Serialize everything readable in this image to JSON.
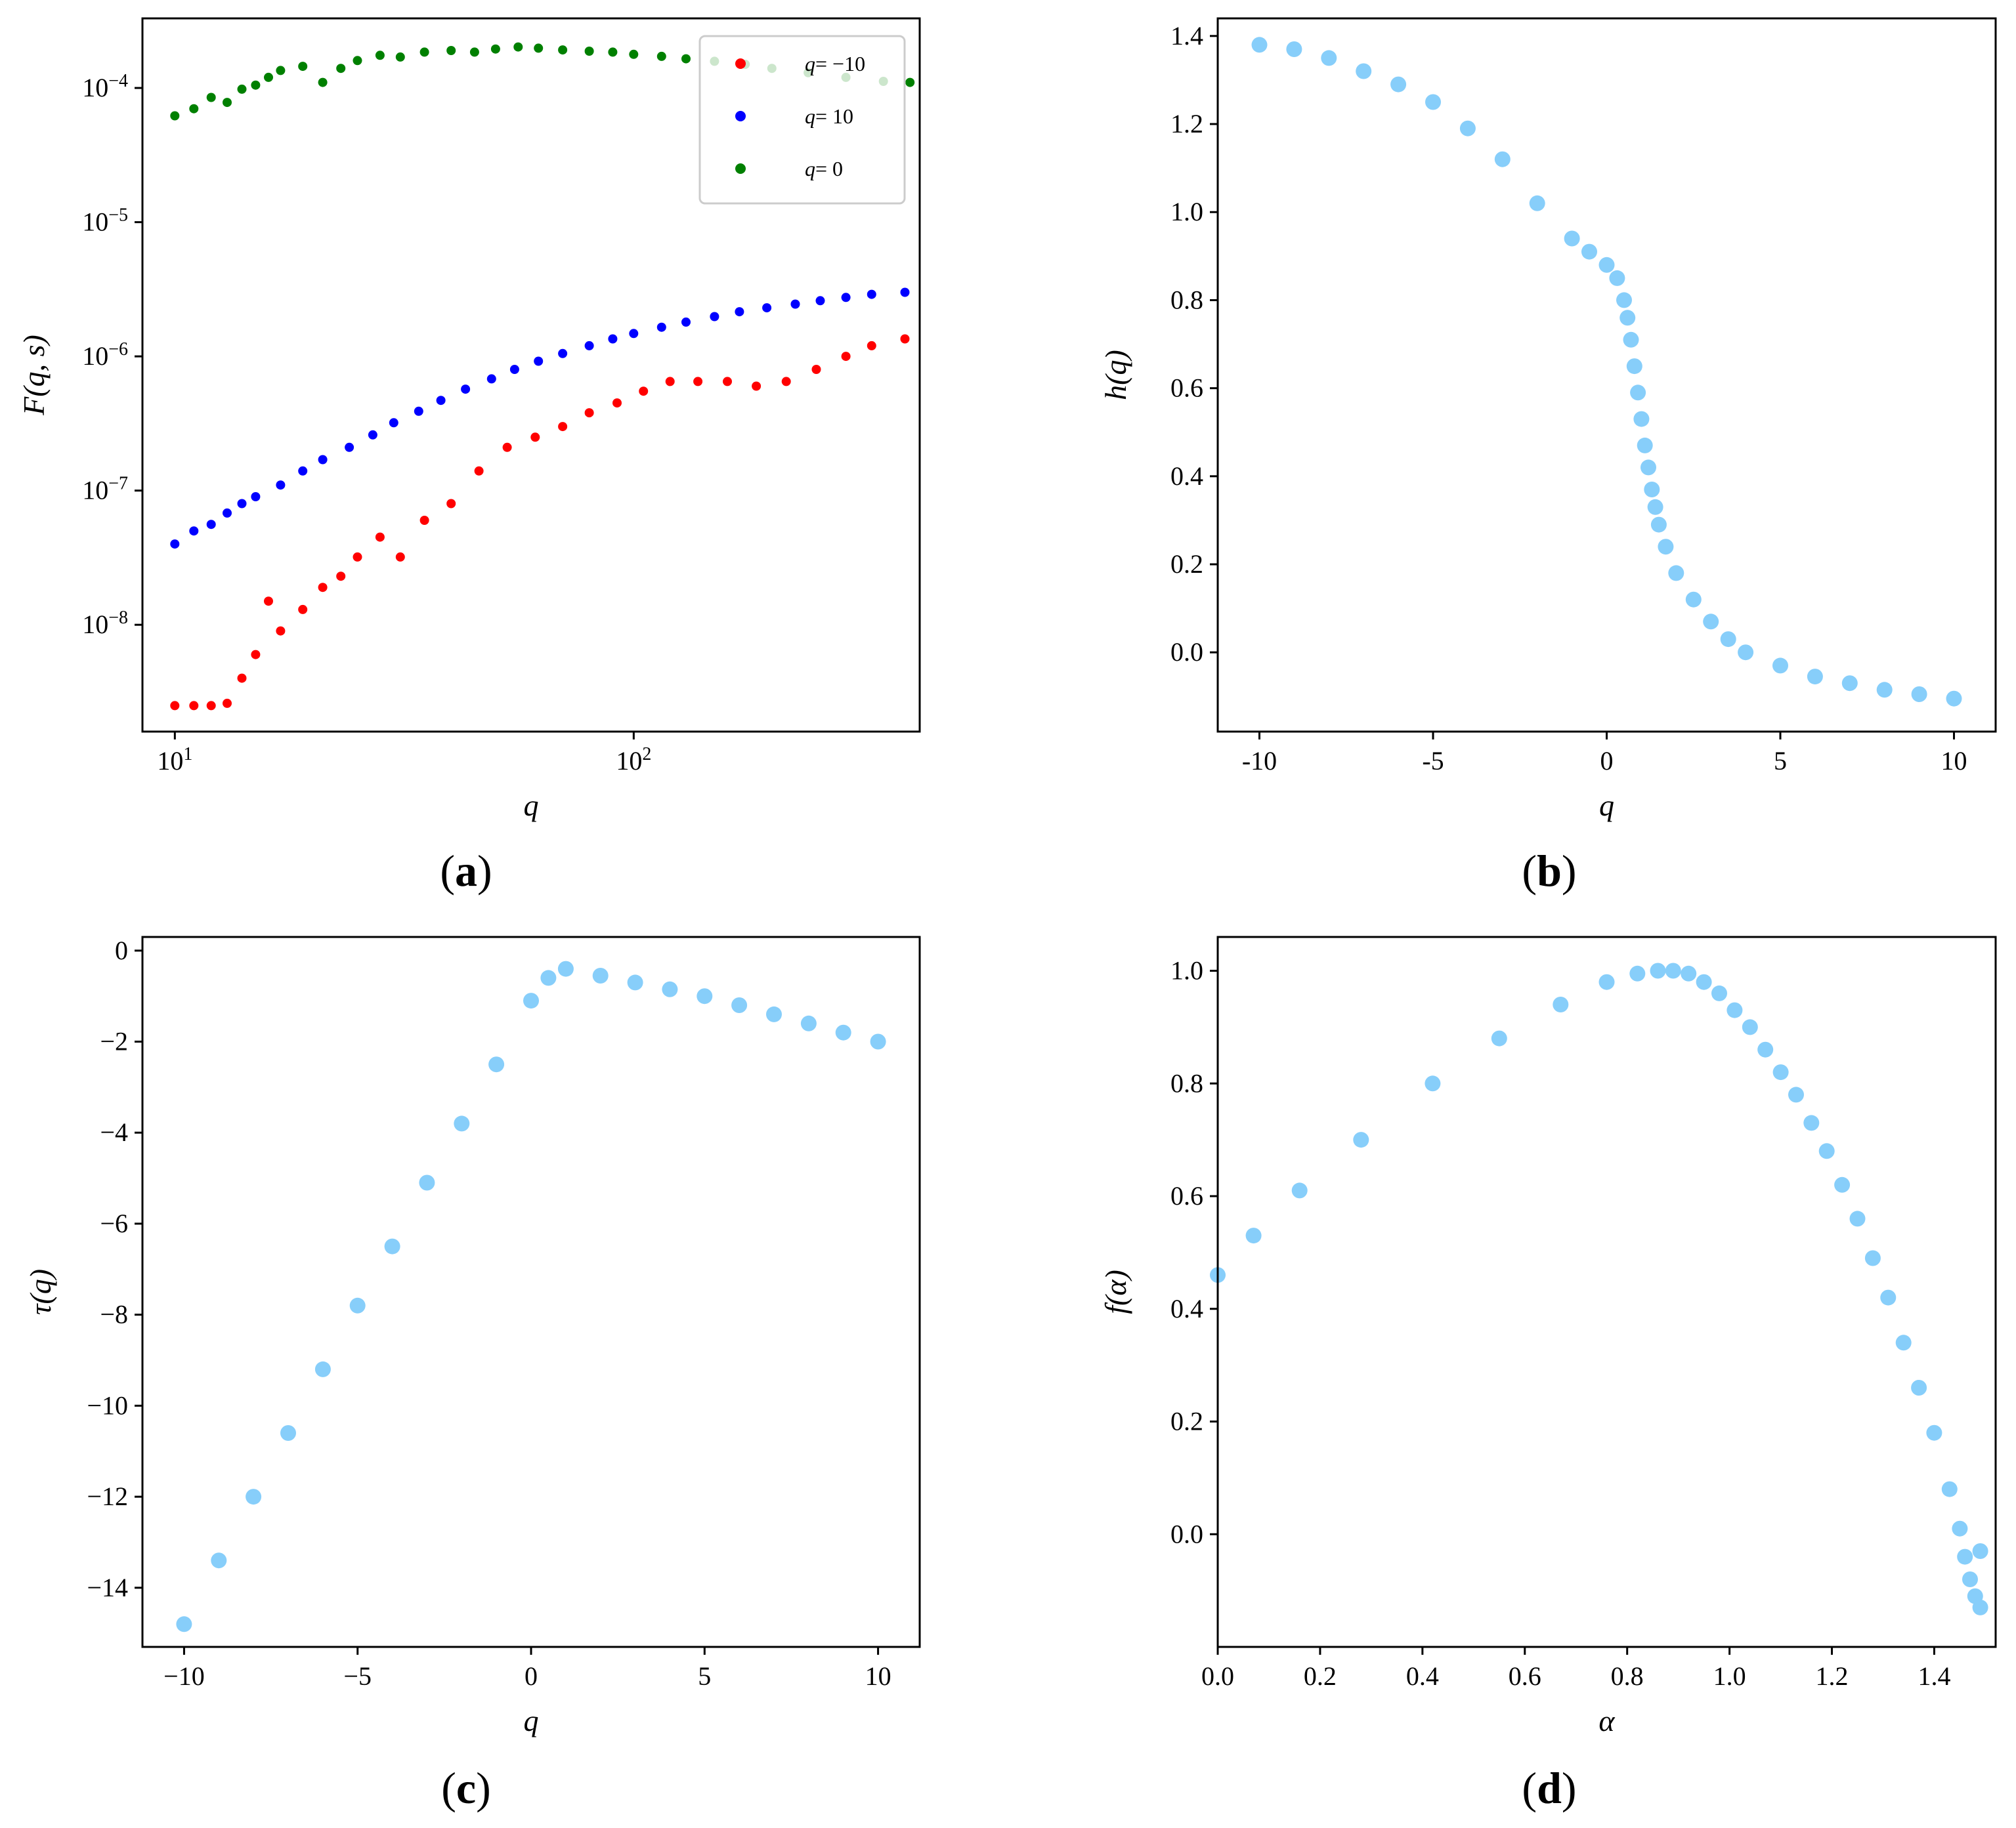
{
  "colors": {
    "red": "#ff0000",
    "blue": "#0000ff",
    "green": "#008000",
    "lightblue": "#87cefa"
  },
  "chart_data": [
    {
      "type": "scatter",
      "panel_label": "a",
      "xlabel": "q",
      "ylabel": "F(q, s)",
      "xscale": "log",
      "yscale": "log",
      "xlim": [
        8.5,
        420
      ],
      "ylim": [
        1.6e-09,
        0.00033
      ],
      "xticks": [
        {
          "value": 10,
          "base": "10",
          "exp": "1"
        },
        {
          "value": 100,
          "base": "10",
          "exp": "2"
        }
      ],
      "yticks": [
        {
          "value": 1e-08,
          "base": "10",
          "exp": "−8"
        },
        {
          "value": 1e-07,
          "base": "10",
          "exp": "−7"
        },
        {
          "value": 1e-06,
          "base": "10",
          "exp": "−6"
        },
        {
          "value": 1e-05,
          "base": "10",
          "exp": "−5"
        },
        {
          "value": 0.0001,
          "base": "10",
          "exp": "−4"
        }
      ],
      "legend_position": "top-right",
      "series": [
        {
          "name": "q=−10",
          "legend_prefix": "q",
          "legend_suffix": "= −10",
          "color": "#ff0000",
          "x": [
            10,
            11,
            12,
            13,
            14,
            15,
            16,
            17,
            19,
            21,
            23,
            25,
            28,
            31,
            35,
            40,
            46,
            53,
            61,
            70,
            80,
            92,
            105,
            120,
            138,
            160,
            185,
            215,
            250,
            290,
            330,
            390
          ],
          "y": [
            2.5e-09,
            2.5e-09,
            2.5e-09,
            2.6e-09,
            4e-09,
            6e-09,
            1.5e-08,
            9e-09,
            1.3e-08,
            1.9e-08,
            2.3e-08,
            3.2e-08,
            4.5e-08,
            3.2e-08,
            6e-08,
            8e-08,
            1.4e-07,
            2.1e-07,
            2.5e-07,
            3e-07,
            3.8e-07,
            4.5e-07,
            5.5e-07,
            6.5e-07,
            6.5e-07,
            6.5e-07,
            6e-07,
            6.5e-07,
            8e-07,
            1e-06,
            1.2e-06,
            1.35e-06
          ]
        },
        {
          "name": "q= 10",
          "legend_prefix": "q",
          "legend_suffix": "= 10",
          "color": "#0000ff",
          "x": [
            10,
            11,
            12,
            13,
            14,
            15,
            17,
            19,
            21,
            24,
            27,
            30,
            34,
            38,
            43,
            49,
            55,
            62,
            70,
            80,
            90,
            100,
            115,
            130,
            150,
            170,
            195,
            225,
            255,
            290,
            330,
            390
          ],
          "y": [
            4e-08,
            5e-08,
            5.6e-08,
            6.8e-08,
            8e-08,
            9e-08,
            1.1e-07,
            1.4e-07,
            1.7e-07,
            2.1e-07,
            2.6e-07,
            3.2e-07,
            3.9e-07,
            4.7e-07,
            5.7e-07,
            6.8e-07,
            8e-07,
            9.2e-07,
            1.05e-06,
            1.2e-06,
            1.35e-06,
            1.48e-06,
            1.65e-06,
            1.8e-06,
            1.98e-06,
            2.15e-06,
            2.3e-06,
            2.45e-06,
            2.6e-06,
            2.75e-06,
            2.9e-06,
            3e-06
          ]
        },
        {
          "name": "q= 0",
          "legend_prefix": "q",
          "legend_suffix": "= 0",
          "color": "#008000",
          "x": [
            10,
            11,
            12,
            13,
            14,
            15,
            16,
            17,
            19,
            21,
            23,
            25,
            28,
            31,
            35,
            40,
            45,
            50,
            56,
            62,
            70,
            80,
            90,
            100,
            115,
            130,
            150,
            175,
            200,
            240,
            290,
            350,
            400
          ],
          "y": [
            6.2e-05,
            7e-05,
            8.5e-05,
            7.8e-05,
            9.8e-05,
            0.000105,
            0.00012,
            0.000135,
            0.000145,
            0.00011,
            0.00014,
            0.00016,
            0.000175,
            0.00017,
            0.000185,
            0.00019,
            0.000185,
            0.000195,
            0.000202,
            0.000198,
            0.000192,
            0.000188,
            0.000185,
            0.000178,
            0.000172,
            0.000165,
            0.000158,
            0.00015,
            0.00014,
            0.00013,
            0.00012,
            0.000112,
            0.00011
          ]
        }
      ]
    },
    {
      "type": "scatter",
      "panel_label": "b",
      "xlabel": "q",
      "ylabel": "h(q)",
      "xlim": [
        -11.2,
        11.2
      ],
      "ylim": [
        -0.18,
        1.44
      ],
      "xticks": [
        {
          "value": -10,
          "label": "-10"
        },
        {
          "value": -5,
          "label": "-5"
        },
        {
          "value": 0,
          "label": "0"
        },
        {
          "value": 5,
          "label": "5"
        },
        {
          "value": 10,
          "label": "10"
        }
      ],
      "yticks": [
        {
          "value": 0.0,
          "label": "0.0"
        },
        {
          "value": 0.2,
          "label": "0.2"
        },
        {
          "value": 0.4,
          "label": "0.4"
        },
        {
          "value": 0.6,
          "label": "0.6"
        },
        {
          "value": 0.8,
          "label": "0.8"
        },
        {
          "value": 1.0,
          "label": "1.0"
        },
        {
          "value": 1.2,
          "label": "1.2"
        },
        {
          "value": 1.4,
          "label": "1.4"
        }
      ],
      "series": [
        {
          "name": "h(q)",
          "color": "#87cefa",
          "x": [
            -10,
            -9,
            -8,
            -7,
            -6,
            -5,
            -4,
            -3,
            -2,
            -1,
            -0.5,
            0,
            0.3,
            0.5,
            0.6,
            0.7,
            0.8,
            0.9,
            1.0,
            1.1,
            1.2,
            1.3,
            1.4,
            1.5,
            1.7,
            2,
            2.5,
            3,
            3.5,
            4,
            5,
            6,
            7,
            8,
            9,
            10
          ],
          "y": [
            1.38,
            1.37,
            1.35,
            1.32,
            1.29,
            1.25,
            1.19,
            1.12,
            1.02,
            0.94,
            0.91,
            0.88,
            0.85,
            0.8,
            0.76,
            0.71,
            0.65,
            0.59,
            0.53,
            0.47,
            0.42,
            0.37,
            0.33,
            0.29,
            0.24,
            0.18,
            0.12,
            0.07,
            0.03,
            0.0,
            -0.03,
            -0.055,
            -0.07,
            -0.085,
            -0.095,
            -0.105
          ]
        }
      ]
    },
    {
      "type": "scatter",
      "panel_label": "c",
      "xlabel": "q",
      "ylabel": "τ(q)",
      "xlim": [
        -11.2,
        11.2
      ],
      "ylim": [
        -15.3,
        0.3
      ],
      "xticks": [
        {
          "value": -10,
          "label": "−10"
        },
        {
          "value": -5,
          "label": "−5"
        },
        {
          "value": 0,
          "label": "0"
        },
        {
          "value": 5,
          "label": "5"
        },
        {
          "value": 10,
          "label": "10"
        }
      ],
      "yticks": [
        {
          "value": 0,
          "label": "0"
        },
        {
          "value": -2,
          "label": "−2"
        },
        {
          "value": -4,
          "label": "−4"
        },
        {
          "value": -6,
          "label": "−6"
        },
        {
          "value": -8,
          "label": "−8"
        },
        {
          "value": -10,
          "label": "−10"
        },
        {
          "value": -12,
          "label": "−12"
        },
        {
          "value": -14,
          "label": "−14"
        }
      ],
      "series": [
        {
          "name": "τ(q)",
          "color": "#87cefa",
          "x": [
            -10,
            -9,
            -8,
            -7,
            -6,
            -5,
            -4,
            -3,
            -2,
            -1,
            0,
            0.5,
            1,
            2,
            3,
            4,
            5,
            6,
            7,
            8,
            9,
            10
          ],
          "y": [
            -14.8,
            -13.4,
            -12.0,
            -10.6,
            -9.2,
            -7.8,
            -6.5,
            -5.1,
            -3.8,
            -2.5,
            -1.1,
            -0.6,
            -0.4,
            -0.55,
            -0.7,
            -0.85,
            -1.0,
            -1.2,
            -1.4,
            -1.6,
            -1.8,
            -2.0
          ]
        }
      ]
    },
    {
      "type": "scatter",
      "panel_label": "d",
      "xlabel": "α",
      "ylabel": "f(α)",
      "xlim": [
        0.0,
        1.52
      ],
      "ylim": [
        -0.2,
        1.06
      ],
      "xticks": [
        {
          "value": 0.0,
          "label": "0.0"
        },
        {
          "value": 0.2,
          "label": "0.2"
        },
        {
          "value": 0.4,
          "label": "0.4"
        },
        {
          "value": 0.6,
          "label": "0.6"
        },
        {
          "value": 0.8,
          "label": "0.8"
        },
        {
          "value": 1.0,
          "label": "1.0"
        },
        {
          "value": 1.2,
          "label": "1.2"
        },
        {
          "value": 1.4,
          "label": "1.4"
        }
      ],
      "yticks": [
        {
          "value": 0.0,
          "label": "0.0"
        },
        {
          "value": 0.2,
          "label": "0.2"
        },
        {
          "value": 0.4,
          "label": "0.4"
        },
        {
          "value": 0.6,
          "label": "0.6"
        },
        {
          "value": 0.8,
          "label": "0.8"
        },
        {
          "value": 1.0,
          "label": "1.0"
        }
      ],
      "series": [
        {
          "name": "f(α)",
          "color": "#87cefa",
          "x": [
            0.0,
            0.07,
            0.16,
            0.28,
            0.42,
            0.55,
            0.67,
            0.76,
            0.82,
            0.86,
            0.89,
            0.92,
            0.95,
            0.98,
            1.01,
            1.04,
            1.07,
            1.1,
            1.13,
            1.16,
            1.19,
            1.22,
            1.25,
            1.28,
            1.31,
            1.34,
            1.37,
            1.4,
            1.43,
            1.45,
            1.46,
            1.47,
            1.48,
            1.49,
            1.49
          ],
          "y": [
            0.46,
            0.53,
            0.61,
            0.7,
            0.8,
            0.88,
            0.94,
            0.98,
            0.995,
            1.0,
            1.0,
            0.995,
            0.98,
            0.96,
            0.93,
            0.9,
            0.86,
            0.82,
            0.78,
            0.73,
            0.68,
            0.62,
            0.56,
            0.49,
            0.42,
            0.34,
            0.26,
            0.18,
            0.08,
            0.01,
            -0.04,
            -0.08,
            -0.11,
            -0.13,
            -0.03
          ]
        }
      ]
    }
  ]
}
